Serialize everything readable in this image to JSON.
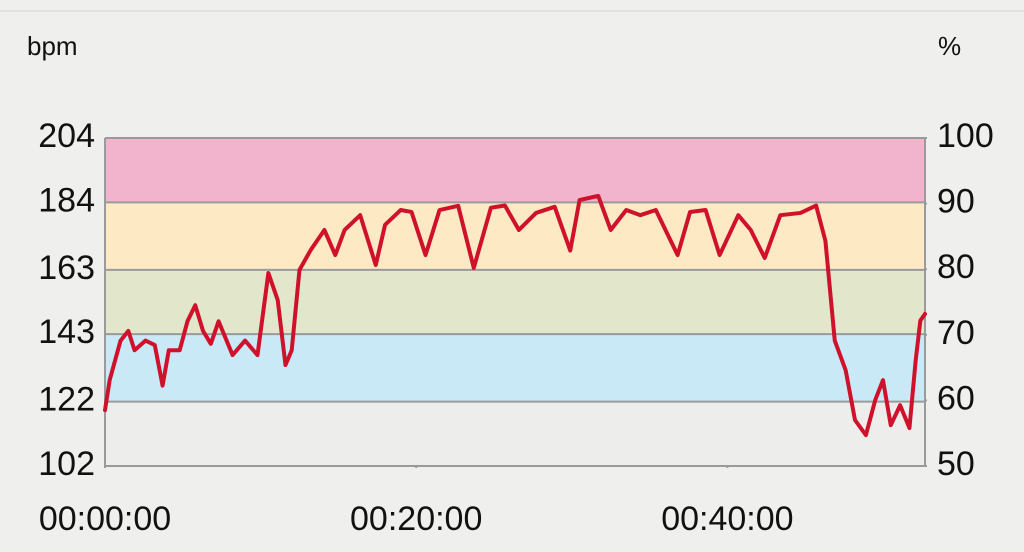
{
  "chart_data": {
    "type": "line",
    "y_label": "bpm",
    "y2_label": "%",
    "x": [
      0,
      0.3,
      1.0,
      1.5,
      1.9,
      2.6,
      3.2,
      3.7,
      4.1,
      4.8,
      5.3,
      5.8,
      6.3,
      6.8,
      7.3,
      8.2,
      9.0,
      9.8,
      10.5,
      11.1,
      11.6,
      12.0,
      12.5,
      13.2,
      14.1,
      14.8,
      15.4,
      16.4,
      17.4,
      18.0,
      19.0,
      19.7,
      20.6,
      21.5,
      22.7,
      23.7,
      24.8,
      25.7,
      26.6,
      27.7,
      28.9,
      29.9,
      30.5,
      31.7,
      32.5,
      33.5,
      34.4,
      35.4,
      36.8,
      37.6,
      38.6,
      39.5,
      40.7,
      41.5,
      42.4,
      43.4,
      44.7,
      45.7,
      46.3,
      46.9,
      47.6,
      48.2,
      48.9,
      49.5,
      50.0,
      50.5,
      51.1,
      51.7,
      52.1,
      52.4,
      52.7
    ],
    "series": [
      {
        "name": "bpm",
        "color": "#d0112b",
        "values": [
          119.4,
          128.7,
          141,
          144,
          138,
          141,
          139.6,
          127,
          138,
          138,
          147,
          152,
          144,
          140,
          147,
          136.5,
          141,
          136.5,
          162,
          153.6,
          133.4,
          138,
          163,
          169,
          175.4,
          167.6,
          175.4,
          180,
          164.5,
          177,
          181.6,
          181,
          167.6,
          181.6,
          182.9,
          163.6,
          182.3,
          183,
          175.4,
          180.7,
          182.6,
          169,
          184.7,
          186,
          175.4,
          181.6,
          180,
          181.6,
          167.6,
          181,
          181.6,
          167.6,
          180,
          175.4,
          166.7,
          180,
          180.7,
          183,
          172,
          141,
          131.8,
          116.3,
          111.6,
          122.5,
          128.7,
          114.7,
          120.9,
          113.8,
          134.8,
          147.2,
          149.3
        ]
      }
    ],
    "xlim": [
      0,
      52.7
    ],
    "xticks": [
      {
        "value": 0,
        "label": "00:00:00"
      },
      {
        "value": 20,
        "label": "00:20:00"
      },
      {
        "value": 40,
        "label": "00:40:00"
      }
    ],
    "ylim": [
      102,
      204
    ],
    "yticks": [
      102,
      122,
      143,
      163,
      184,
      204
    ],
    "y2lim": [
      50,
      100
    ],
    "y2ticks": [
      50,
      60,
      70,
      80,
      90,
      100
    ],
    "zone_colors": [
      "#ededec",
      "#c9e9f7",
      "#e2e6cb",
      "#fde9c4",
      "#f2b3cc"
    ],
    "grid": true
  }
}
